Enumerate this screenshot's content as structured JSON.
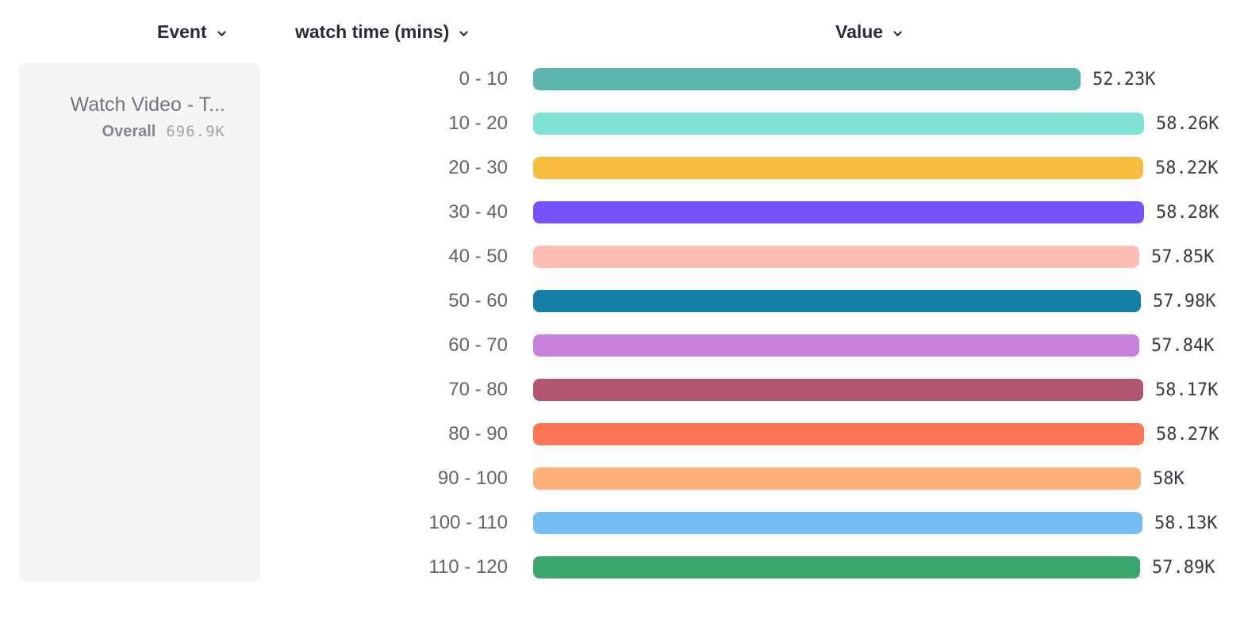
{
  "header": {
    "event_label": "Event",
    "breakdown_label": "watch time (mins)",
    "value_label": "Value"
  },
  "event_card": {
    "title": "Watch Video - T...",
    "overall_label": "Overall",
    "overall_value": "696.9K"
  },
  "chart_data": {
    "type": "bar",
    "orientation": "horizontal",
    "title": "",
    "xlabel": "Value",
    "ylabel": "watch time (mins)",
    "categories": [
      "0 - 10",
      "10 - 20",
      "20 - 30",
      "30 - 40",
      "40 - 50",
      "50 - 60",
      "60 - 70",
      "70 - 80",
      "80 - 90",
      "90 - 100",
      "100 - 110",
      "110 - 120"
    ],
    "values": [
      52230,
      58260,
      58220,
      58280,
      57850,
      57980,
      57840,
      58170,
      58270,
      58000,
      58130,
      57890
    ],
    "value_labels": [
      "52.23K",
      "58.26K",
      "58.22K",
      "58.28K",
      "57.85K",
      "57.98K",
      "57.84K",
      "58.17K",
      "58.27K",
      "58K",
      "58.13K",
      "57.89K"
    ],
    "colors": [
      "#5cb6ae",
      "#7fe0d4",
      "#f7bd3e",
      "#7752f8",
      "#fcbdb4",
      "#1480a6",
      "#c983dc",
      "#b05670",
      "#fd7356",
      "#fdb078",
      "#75bdf5",
      "#3ba56e"
    ],
    "max_value": 58280,
    "legend": false,
    "grid": false,
    "overall_total": "696.9K",
    "event_name": "Watch Video - T..."
  }
}
